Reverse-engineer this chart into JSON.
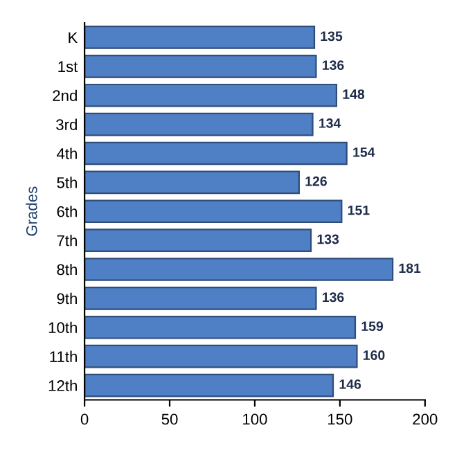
{
  "chart_data": {
    "type": "bar",
    "orientation": "horizontal",
    "ylabel": "Grades",
    "categories": [
      "K",
      "1st",
      "2nd",
      "3rd",
      "4th",
      "5th",
      "6th",
      "7th",
      "8th",
      "9th",
      "10th",
      "11th",
      "12th"
    ],
    "values": [
      135,
      136,
      148,
      134,
      154,
      126,
      151,
      133,
      181,
      136,
      159,
      160,
      146
    ],
    "color": "#4f7fc4",
    "data_labels": true,
    "xlim": [
      0,
      200
    ],
    "xticks": [
      0,
      50,
      100,
      150,
      200
    ],
    "grid": false,
    "legend": false
  }
}
